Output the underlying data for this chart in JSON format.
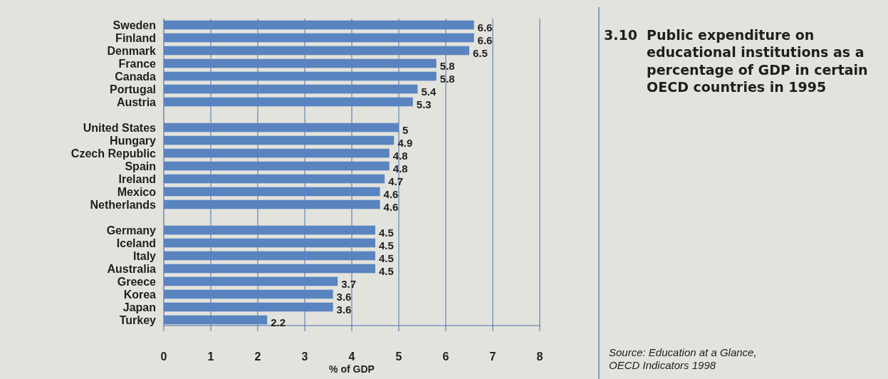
{
  "chart_data": {
    "type": "bar",
    "orientation": "horizontal",
    "title": "3.10 Public expenditure on educational institutions as a percentage of GDP in certain OECD countries in 1995",
    "xlabel": "% of GDP",
    "annotations": [
      "Source: Education at a Glance, OECD Indicators 1998"
    ],
    "categories": [
      "Sweden",
      "Finland",
      "Denmark",
      "France",
      "Canada",
      "Portugal",
      "Austria",
      null,
      "United States",
      "Hungary",
      "Czech Republic",
      "Spain",
      "Ireland",
      "Mexico",
      "Netherlands",
      null,
      "Germany",
      "Iceland",
      "Italy",
      "Australia",
      "Greece",
      "Korea",
      "Japan",
      "Turkey"
    ],
    "values": [
      6.6,
      6.6,
      6.5,
      5.8,
      5.8,
      5.4,
      5.3,
      null,
      5,
      4.9,
      4.8,
      4.8,
      4.7,
      4.6,
      4.6,
      null,
      4.5,
      4.5,
      4.5,
      4.5,
      3.7,
      3.6,
      3.6,
      2.2
    ],
    "color": "#5a84bf",
    "xlim": [
      0,
      8
    ],
    "xticks": [
      0,
      1,
      2,
      3,
      4,
      5,
      6,
      7,
      8
    ],
    "grid": "x",
    "data_labels": true
  }
}
